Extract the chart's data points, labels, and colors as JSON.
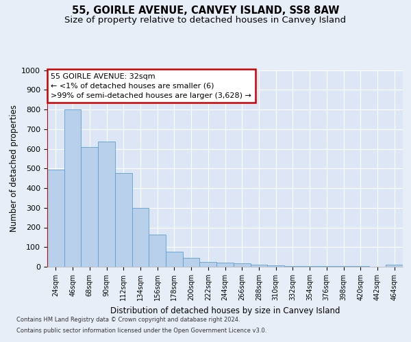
{
  "title1": "55, GOIRLE AVENUE, CANVEY ISLAND, SS8 8AW",
  "title2": "Size of property relative to detached houses in Canvey Island",
  "xlabel": "Distribution of detached houses by size in Canvey Island",
  "ylabel": "Number of detached properties",
  "categories": [
    "24sqm",
    "46sqm",
    "68sqm",
    "90sqm",
    "112sqm",
    "134sqm",
    "156sqm",
    "178sqm",
    "200sqm",
    "222sqm",
    "244sqm",
    "266sqm",
    "288sqm",
    "310sqm",
    "332sqm",
    "354sqm",
    "376sqm",
    "398sqm",
    "420sqm",
    "442sqm",
    "464sqm"
  ],
  "values": [
    495,
    800,
    610,
    635,
    475,
    300,
    163,
    78,
    45,
    25,
    22,
    18,
    12,
    8,
    5,
    4,
    3,
    2,
    2,
    1,
    10
  ],
  "bar_color": "#b8d0ea",
  "bar_edge_color": "#5a9fd4",
  "annotation_text": "55 GOIRLE AVENUE: 32sqm\n← <1% of detached houses are smaller (6)\n>99% of semi-detached houses are larger (3,628) →",
  "annotation_box_color": "#ffffff",
  "annotation_box_edge_color": "#cc0000",
  "ylim": [
    0,
    1000
  ],
  "yticks": [
    0,
    100,
    200,
    300,
    400,
    500,
    600,
    700,
    800,
    900,
    1000
  ],
  "footnote1": "Contains HM Land Registry data © Crown copyright and database right 2024.",
  "footnote2": "Contains public sector information licensed under the Open Government Licence v3.0.",
  "bg_color": "#e8eef8",
  "plot_bg_color": "#dde6f5",
  "grid_color": "#ffffff",
  "title1_fontsize": 10.5,
  "title2_fontsize": 9.5,
  "xlabel_fontsize": 8.5,
  "ylabel_fontsize": 8.5
}
